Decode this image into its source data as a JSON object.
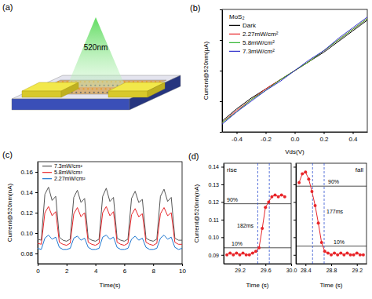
{
  "schematic": {
    "panel": "(a)",
    "light_label": "520nm"
  },
  "chart_data": [
    {
      "type": "line",
      "panel": "(b)",
      "x_label": "Vds(V)",
      "y_label": "Current@520nm(μA)",
      "x": [
        -0.5,
        -0.4,
        -0.3,
        -0.2,
        -0.1,
        0,
        0.1,
        0.2,
        0.3,
        0.4,
        0.5
      ],
      "series": [
        {
          "name": "Dark",
          "color": "#000000",
          "values": [
            -0.33,
            -0.25,
            -0.18,
            -0.12,
            -0.06,
            0,
            0.06,
            0.12,
            0.19,
            0.26,
            0.33
          ]
        },
        {
          "name": "2.27mW/cm²",
          "color": "#e8262a",
          "values": [
            -0.34,
            -0.26,
            -0.19,
            -0.12,
            -0.06,
            0,
            0.06,
            0.13,
            0.2,
            0.27,
            0.34
          ]
        },
        {
          "name": "5.8mW/cm²",
          "color": "#2cb52c",
          "values": [
            -0.34,
            -0.27,
            -0.19,
            -0.13,
            -0.06,
            0,
            0.06,
            0.13,
            0.2,
            0.27,
            0.34
          ]
        },
        {
          "name": "7.3mW/cm²",
          "color": "#3333cc",
          "values": [
            -0.35,
            -0.27,
            -0.2,
            -0.13,
            -0.07,
            0,
            0.07,
            0.13,
            0.21,
            0.28,
            0.35
          ]
        }
      ],
      "xlim": [
        -0.5,
        0.5
      ],
      "xticks": [
        -0.4,
        -0.2,
        {
          "value": 0,
          "label": "0.0"
        },
        0.2,
        0.4
      ],
      "ylim": [
        -0.4,
        0.4
      ],
      "yticks": [
        -0.4,
        -0.2,
        0,
        0.2,
        0.4
      ],
      "tick_labels": "x",
      "legend_title": "MoS₂",
      "legend": "upper left"
    },
    {
      "type": "line",
      "panel": "(c)",
      "x_label": "Time(s)",
      "y_label": "Current@520nm(nA)",
      "x": [
        0,
        0.25,
        0.5,
        0.75,
        1,
        1.25,
        1.5,
        1.75,
        2,
        2.25,
        2.5,
        2.75,
        3,
        3.25,
        3.5,
        3.75,
        4,
        4.25,
        4.5,
        4.75,
        5,
        5.25,
        5.5,
        5.75,
        6,
        6.25,
        6.5,
        6.75,
        7,
        7.25,
        7.5,
        7.75,
        8,
        8.25,
        8.5,
        8.75,
        9,
        9.25,
        9.5,
        9.75,
        10
      ],
      "series": [
        {
          "name": "7.3mW/cm²",
          "color": "#555555",
          "values": [
            0.094,
            0.093,
            0.138,
            0.145,
            0.132,
            0.136,
            0.096,
            0.093,
            0.092,
            0.094,
            0.135,
            0.142,
            0.13,
            0.134,
            0.095,
            0.093,
            0.092,
            0.094,
            0.136,
            0.144,
            0.131,
            0.135,
            0.095,
            0.093,
            0.092,
            0.094,
            0.134,
            0.141,
            0.13,
            0.133,
            0.095,
            0.093,
            0.092,
            0.094,
            0.136,
            0.143,
            0.131,
            0.135,
            0.095,
            0.093,
            0.093
          ]
        },
        {
          "name": "5.8mW/cm²",
          "color": "#e8262a",
          "values": [
            0.09,
            0.089,
            0.12,
            0.126,
            0.117,
            0.121,
            0.091,
            0.089,
            0.088,
            0.09,
            0.119,
            0.125,
            0.116,
            0.12,
            0.091,
            0.089,
            0.088,
            0.09,
            0.12,
            0.126,
            0.117,
            0.121,
            0.091,
            0.089,
            0.088,
            0.09,
            0.118,
            0.124,
            0.116,
            0.119,
            0.091,
            0.089,
            0.088,
            0.09,
            0.119,
            0.125,
            0.117,
            0.12,
            0.091,
            0.089,
            0.089
          ]
        },
        {
          "name": "2.27mW/cm²",
          "color": "#1f77d0",
          "values": [
            0.085,
            0.084,
            0.095,
            0.098,
            0.094,
            0.096,
            0.086,
            0.084,
            0.084,
            0.085,
            0.095,
            0.097,
            0.093,
            0.095,
            0.086,
            0.084,
            0.084,
            0.085,
            0.096,
            0.098,
            0.094,
            0.096,
            0.086,
            0.084,
            0.084,
            0.085,
            0.094,
            0.097,
            0.093,
            0.095,
            0.086,
            0.084,
            0.084,
            0.085,
            0.095,
            0.098,
            0.094,
            0.096,
            0.086,
            0.084,
            0.085
          ]
        }
      ],
      "xlim": [
        0,
        10
      ],
      "xticks": [
        0,
        2,
        4,
        6,
        8,
        10
      ],
      "ylim": [
        0.07,
        0.17
      ],
      "yticks": [
        0.08,
        {
          "value": 0.1,
          "label": "0.10"
        },
        0.12,
        0.14,
        0.16
      ],
      "legend": "upper left"
    },
    {
      "type": "line",
      "panel": "(d)",
      "title": "rise",
      "x_label": "Time (s)",
      "y_label": "Current@520nm(nA)",
      "x": [
        29.0,
        29.05,
        29.1,
        29.15,
        29.2,
        29.25,
        29.3,
        29.35,
        29.4,
        29.45,
        29.5,
        29.55,
        29.6,
        29.65,
        29.7,
        29.75,
        29.8,
        29.85,
        29.9
      ],
      "series": [
        {
          "color": "#e8262a",
          "marker": "circle",
          "values": [
            0.09,
            0.091,
            0.09,
            0.091,
            0.09,
            0.091,
            0.09,
            0.09,
            0.091,
            0.092,
            0.094,
            0.105,
            0.117,
            0.12,
            0.123,
            0.124,
            0.123,
            0.124,
            0.123
          ]
        }
      ],
      "hlines": [
        {
          "value": 0.119,
          "label": "90%"
        },
        {
          "value": 0.094,
          "label": "10%"
        }
      ],
      "vlines": [
        29.48,
        29.66
      ],
      "interval_label": "182ms",
      "xlim": [
        28.95,
        30.0
      ],
      "xticks": [
        29.2,
        29.6,
        {
          "value": 30.0,
          "label": "30.0"
        }
      ],
      "ylim": [
        0.085,
        0.142
      ],
      "yticks": [
        0.09,
        {
          "value": 0.1,
          "label": "0.10"
        },
        0.11,
        0.12,
        0.13,
        0.14
      ]
    },
    {
      "type": "line",
      "title": "fall",
      "x_label": "Time (s)",
      "x": [
        28.3,
        28.35,
        28.4,
        28.45,
        28.5,
        28.55,
        28.6,
        28.65,
        28.7,
        28.75,
        28.8,
        28.85,
        28.9,
        28.95,
        29.0,
        29.05,
        29.1,
        29.15,
        29.2,
        29.25,
        29.3
      ],
      "series": [
        {
          "color": "#e8262a",
          "marker": "circle",
          "values": [
            0.131,
            0.136,
            0.137,
            0.133,
            0.126,
            0.118,
            0.108,
            0.097,
            0.092,
            0.091,
            0.09,
            0.091,
            0.09,
            0.091,
            0.09,
            0.091,
            0.09,
            0.09,
            0.091,
            0.09,
            0.09
          ]
        }
      ],
      "hlines": [
        {
          "value": 0.129,
          "label": "90%"
        },
        {
          "value": 0.095,
          "label": "10%"
        }
      ],
      "vlines": [
        28.51,
        28.69
      ],
      "interval_label": "177ms",
      "xlim": [
        28.25,
        29.35
      ],
      "xticks": [
        28.4,
        28.8,
        29.2
      ],
      "ylim": [
        0.085,
        0.142
      ],
      "yticks": [
        0.09,
        0.1,
        0.11,
        0.12,
        0.13,
        0.14
      ],
      "tick_labels": "x"
    }
  ]
}
